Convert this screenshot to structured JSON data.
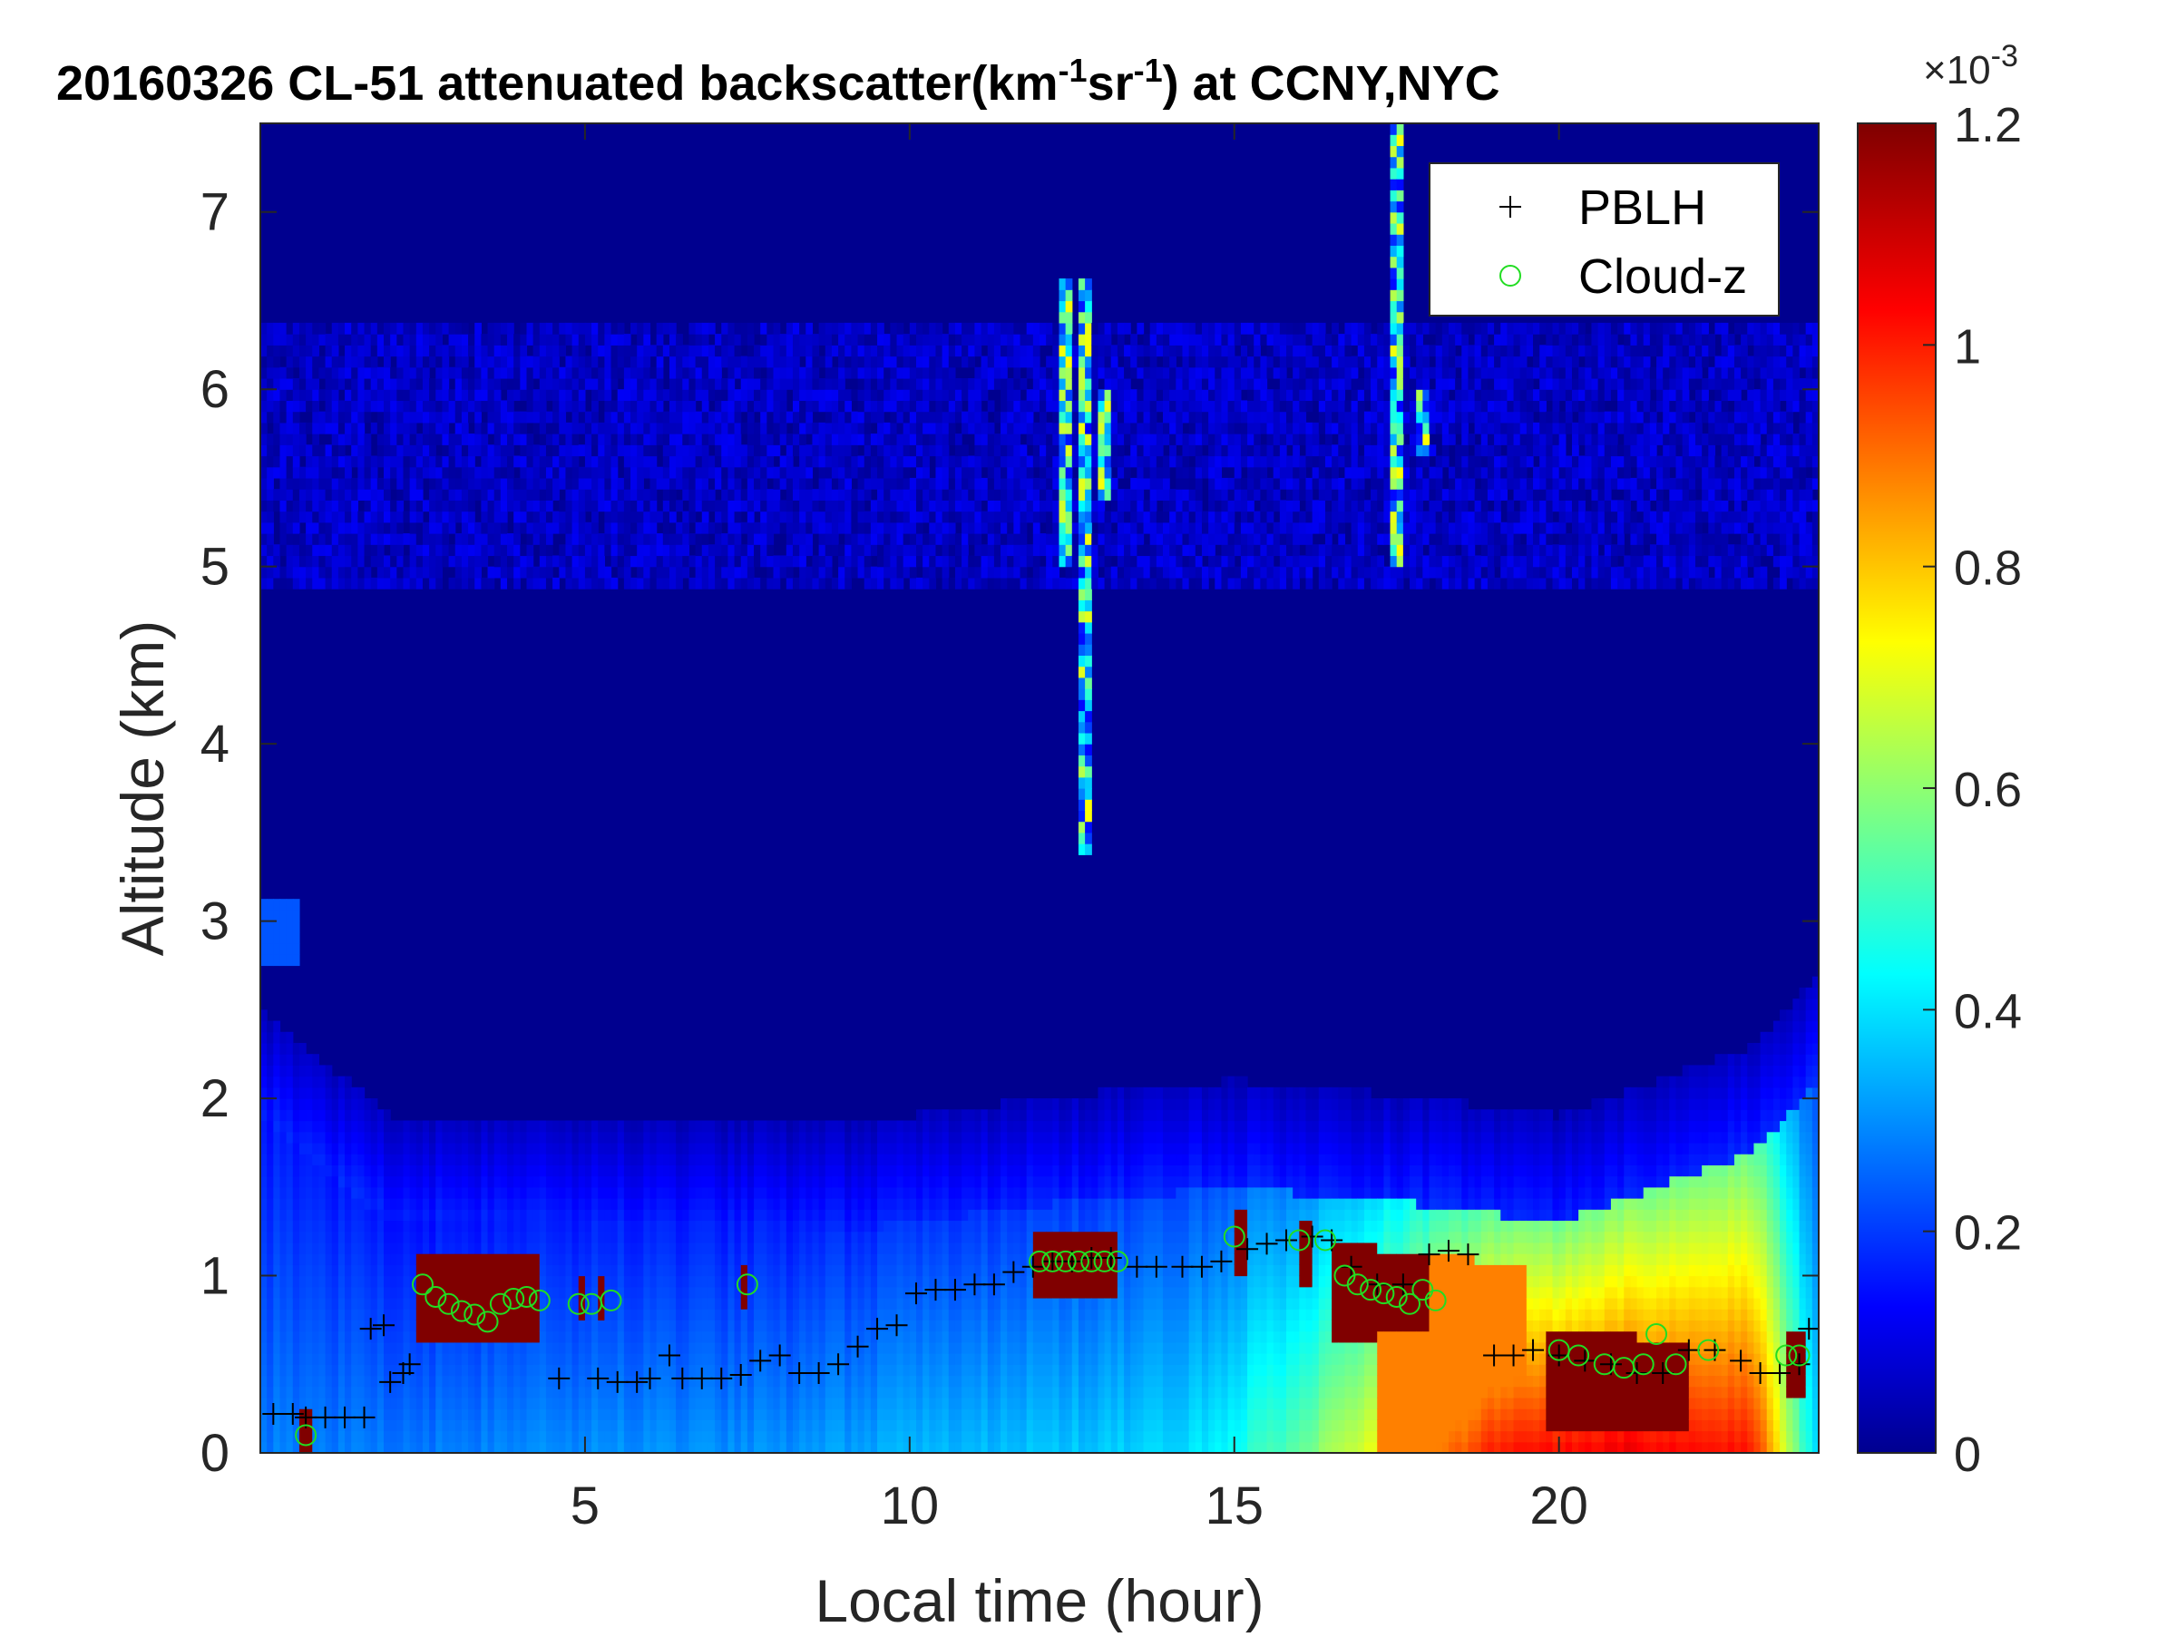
{
  "chart_data": {
    "type": "heatmap",
    "title": {
      "prefix": "20160326  CL-51 attenuated backscatter(km",
      "sup1": "-1",
      "mid": "sr",
      "sup2": "-1",
      "suffix": ") at CCNY,NYC"
    },
    "xlabel": "Local time (hour)",
    "ylabel": "Altitude (km)",
    "xlim": [
      0,
      24
    ],
    "ylim": [
      0,
      7.5
    ],
    "x_ticks": [
      5,
      10,
      15,
      20
    ],
    "y_ticks": [
      0,
      1,
      2,
      3,
      4,
      5,
      6,
      7
    ],
    "colorbar": {
      "colormap": "jet",
      "clim": [
        0,
        1.2
      ],
      "ticks": [
        0,
        0.2,
        0.4,
        0.6,
        0.8,
        1,
        1.2
      ],
      "tick_labels": [
        "0",
        "0.2",
        "0.4",
        "0.6",
        "0.8",
        "1",
        "1.2"
      ],
      "exponent_label": "×10",
      "exponent_sup": "-3"
    },
    "legend": {
      "position": "top-right",
      "entries": [
        {
          "label": "PBLH",
          "marker": "+",
          "color": "#000000"
        },
        {
          "label": "Cloud-z",
          "marker": "o",
          "color": "#22dd22"
        }
      ]
    },
    "series": [
      {
        "name": "PBLH",
        "points": [
          [
            0.2,
            0.22
          ],
          [
            0.5,
            0.22
          ],
          [
            0.7,
            0.2
          ],
          [
            1.0,
            0.2
          ],
          [
            1.3,
            0.2
          ],
          [
            1.6,
            0.2
          ],
          [
            1.7,
            0.7
          ],
          [
            1.9,
            0.72
          ],
          [
            2.0,
            0.4
          ],
          [
            2.2,
            0.45
          ],
          [
            2.3,
            0.5
          ],
          [
            4.6,
            0.42
          ],
          [
            5.2,
            0.42
          ],
          [
            5.5,
            0.4
          ],
          [
            5.8,
            0.4
          ],
          [
            6.0,
            0.42
          ],
          [
            6.3,
            0.55
          ],
          [
            6.5,
            0.42
          ],
          [
            6.8,
            0.42
          ],
          [
            7.1,
            0.42
          ],
          [
            7.4,
            0.44
          ],
          [
            7.7,
            0.52
          ],
          [
            8.0,
            0.55
          ],
          [
            8.3,
            0.45
          ],
          [
            8.6,
            0.45
          ],
          [
            8.9,
            0.5
          ],
          [
            9.2,
            0.6
          ],
          [
            9.5,
            0.7
          ],
          [
            9.8,
            0.72
          ],
          [
            10.1,
            0.9
          ],
          [
            10.4,
            0.92
          ],
          [
            10.7,
            0.92
          ],
          [
            11.0,
            0.95
          ],
          [
            11.3,
            0.95
          ],
          [
            11.6,
            1.02
          ],
          [
            11.9,
            1.05
          ],
          [
            12.2,
            1.08
          ],
          [
            12.5,
            1.08
          ],
          [
            12.8,
            1.1
          ],
          [
            13.1,
            1.1
          ],
          [
            13.5,
            1.05
          ],
          [
            13.8,
            1.05
          ],
          [
            14.2,
            1.05
          ],
          [
            14.5,
            1.05
          ],
          [
            14.8,
            1.08
          ],
          [
            15.2,
            1.15
          ],
          [
            15.5,
            1.18
          ],
          [
            15.8,
            1.2
          ],
          [
            16.2,
            1.22
          ],
          [
            16.5,
            1.2
          ],
          [
            16.8,
            1.05
          ],
          [
            17.2,
            0.95
          ],
          [
            17.6,
            0.95
          ],
          [
            18.0,
            1.12
          ],
          [
            18.3,
            1.14
          ],
          [
            18.6,
            1.12
          ],
          [
            19.0,
            0.55
          ],
          [
            19.3,
            0.55
          ],
          [
            19.6,
            0.58
          ],
          [
            20.0,
            0.55
          ],
          [
            20.4,
            0.52
          ],
          [
            20.8,
            0.5
          ],
          [
            21.2,
            0.45
          ],
          [
            21.6,
            0.45
          ],
          [
            22.0,
            0.58
          ],
          [
            22.4,
            0.58
          ],
          [
            22.8,
            0.52
          ],
          [
            23.1,
            0.45
          ],
          [
            23.4,
            0.45
          ],
          [
            23.7,
            0.5
          ],
          [
            23.85,
            0.7
          ]
        ]
      },
      {
        "name": "Cloud-z",
        "points": [
          [
            0.7,
            0.1
          ],
          [
            2.5,
            0.95
          ],
          [
            2.7,
            0.88
          ],
          [
            2.9,
            0.84
          ],
          [
            3.1,
            0.8
          ],
          [
            3.3,
            0.78
          ],
          [
            3.5,
            0.74
          ],
          [
            3.7,
            0.84
          ],
          [
            3.9,
            0.87
          ],
          [
            4.1,
            0.88
          ],
          [
            4.3,
            0.86
          ],
          [
            4.9,
            0.84
          ],
          [
            5.1,
            0.84
          ],
          [
            5.4,
            0.86
          ],
          [
            7.5,
            0.95
          ],
          [
            12.0,
            1.08
          ],
          [
            12.2,
            1.08
          ],
          [
            12.4,
            1.08
          ],
          [
            12.6,
            1.08
          ],
          [
            12.8,
            1.08
          ],
          [
            13.0,
            1.08
          ],
          [
            13.2,
            1.08
          ],
          [
            15.0,
            1.22
          ],
          [
            16.0,
            1.2
          ],
          [
            16.4,
            1.2
          ],
          [
            16.7,
            1.0
          ],
          [
            16.9,
            0.95
          ],
          [
            17.1,
            0.92
          ],
          [
            17.3,
            0.9
          ],
          [
            17.5,
            0.88
          ],
          [
            17.7,
            0.84
          ],
          [
            17.9,
            0.92
          ],
          [
            18.1,
            0.86
          ],
          [
            20.0,
            0.58
          ],
          [
            20.3,
            0.55
          ],
          [
            20.7,
            0.5
          ],
          [
            21.0,
            0.48
          ],
          [
            21.3,
            0.5
          ],
          [
            21.5,
            0.67
          ],
          [
            21.8,
            0.5
          ],
          [
            22.3,
            0.58
          ],
          [
            23.5,
            0.55
          ],
          [
            23.7,
            0.55
          ]
        ]
      }
    ]
  }
}
